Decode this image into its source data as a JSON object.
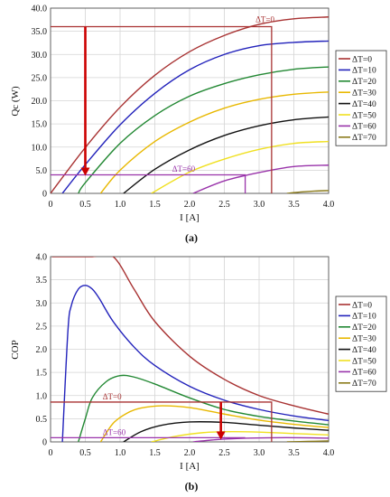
{
  "chart_data": [
    {
      "type": "line",
      "panel_label": "(a)",
      "xlabel": "I [A]",
      "ylabel": "Qc (W)",
      "xlim": [
        0,
        4
      ],
      "ylim": [
        0,
        40
      ],
      "xticks": [
        "0",
        "0.5",
        "1.0",
        "1.5",
        "2.0",
        "2.5",
        "3.0",
        "3.5",
        "4.0"
      ],
      "yticks": [
        "0",
        "5.0",
        "10.0",
        "15.0",
        "20.0",
        "25.0",
        "30.0",
        "35.0",
        "40.0"
      ],
      "grid": true,
      "legend_position": "right",
      "series": [
        {
          "name": "ΔT=0",
          "color": "#a83232",
          "x": [
            0,
            0.5,
            1.0,
            1.5,
            2.0,
            2.5,
            3.0,
            3.5,
            4.0
          ],
          "y": [
            0,
            9.9,
            18.6,
            25.5,
            30.6,
            34.1,
            36.5,
            37.7,
            38.1
          ]
        },
        {
          "name": "ΔT=10",
          "color": "#2222bb",
          "x": [
            0.17,
            0.5,
            1.0,
            1.5,
            2.0,
            2.5,
            3.0,
            3.5,
            4.0
          ],
          "y": [
            0,
            6.2,
            14.8,
            21.6,
            26.7,
            30.0,
            31.9,
            32.6,
            32.9
          ]
        },
        {
          "name": "ΔT=20",
          "color": "#228833",
          "x": [
            0.4,
            0.5,
            1.0,
            1.5,
            2.0,
            2.5,
            3.0,
            3.5,
            4.0
          ],
          "y": [
            0,
            2.3,
            10.8,
            16.8,
            21.0,
            23.7,
            25.6,
            26.8,
            27.3
          ]
        },
        {
          "name": "ΔT=30",
          "color": "#e8b800",
          "x": [
            0.72,
            1.0,
            1.5,
            2.0,
            2.5,
            3.0,
            3.5,
            4.0
          ],
          "y": [
            0,
            5.0,
            11.2,
            15.4,
            18.4,
            20.3,
            21.4,
            21.9
          ]
        },
        {
          "name": "ΔT=40",
          "color": "#111111",
          "x": [
            1.05,
            1.5,
            2.0,
            2.5,
            3.0,
            3.5,
            4.0
          ],
          "y": [
            0,
            5.2,
            9.4,
            12.5,
            14.6,
            15.9,
            16.5
          ]
        },
        {
          "name": "ΔT=50",
          "color": "#f0e020",
          "x": [
            1.45,
            2.0,
            2.5,
            3.0,
            3.5,
            4.0
          ],
          "y": [
            0,
            4.6,
            7.4,
            9.5,
            10.8,
            11.2
          ]
        },
        {
          "name": "ΔT=60",
          "color": "#9933aa",
          "x": [
            2.05,
            2.5,
            3.0,
            3.5,
            4.0
          ],
          "y": [
            0,
            2.7,
            4.5,
            5.8,
            6.1
          ]
        },
        {
          "name": "ΔT=70",
          "color": "#8a7a1a",
          "x": [
            3.4,
            3.6,
            3.8,
            4.0
          ],
          "y": [
            0,
            0.3,
            0.5,
            0.6
          ]
        }
      ],
      "annotations": [
        {
          "text": "ΔT=0",
          "x": 2.95,
          "y": 37.0,
          "color": "#a83232"
        },
        {
          "text": "ΔT=60",
          "x": 1.75,
          "y": 4.7,
          "color": "#9933aa"
        }
      ],
      "reference_lines": [
        {
          "color": "#a83232",
          "points": [
            [
              0,
              36
            ],
            [
              3.18,
              36
            ],
            [
              3.18,
              0
            ]
          ]
        },
        {
          "color": "#9933aa",
          "points": [
            [
              0,
              4
            ],
            [
              2.8,
              4
            ],
            [
              2.8,
              0
            ]
          ]
        }
      ],
      "arrow": {
        "color": "#cc0000",
        "from": [
          0.5,
          36
        ],
        "to": [
          0.5,
          3.8
        ]
      }
    },
    {
      "type": "line",
      "panel_label": "(b)",
      "xlabel": "I [A]",
      "ylabel": "COP",
      "xlim": [
        0,
        4
      ],
      "ylim": [
        0,
        4
      ],
      "xticks": [
        "0",
        "0.5",
        "1.0",
        "1.5",
        "2.0",
        "2.5",
        "3.0",
        "3.5",
        "4.0"
      ],
      "yticks": [
        "0",
        "0.5",
        "1.0",
        "1.5",
        "2.0",
        "2.5",
        "3.0",
        "3.5",
        "4.0"
      ],
      "grid": true,
      "legend_position": "right",
      "series": [
        {
          "name": "ΔT=0",
          "color": "#a83232",
          "x": [
            0.02,
            0.05,
            0.1,
            0.3,
            0.6,
            0.9,
            1.2,
            1.5,
            2.0,
            2.5,
            3.0,
            3.5,
            4.0
          ],
          "y": [
            4.0,
            4.0,
            4.0,
            4.0,
            4.0,
            4.0,
            3.3,
            2.6,
            1.85,
            1.35,
            1.0,
            0.78,
            0.6
          ]
        },
        {
          "name": "ΔT=10",
          "color": "#2222bb",
          "x": [
            0.17,
            0.25,
            0.3,
            0.4,
            0.5,
            0.6,
            0.7,
            0.9,
            1.2,
            1.5,
            2.0,
            2.5,
            3.0,
            3.5,
            4.0
          ],
          "y": [
            0,
            2.4,
            2.95,
            3.3,
            3.38,
            3.3,
            3.1,
            2.6,
            2.05,
            1.65,
            1.2,
            0.9,
            0.7,
            0.56,
            0.46
          ]
        },
        {
          "name": "ΔT=20",
          "color": "#228833",
          "x": [
            0.4,
            0.5,
            0.6,
            0.8,
            1.0,
            1.2,
            1.5,
            2.0,
            2.5,
            3.0,
            3.5,
            4.0
          ],
          "y": [
            0,
            0.5,
            0.95,
            1.3,
            1.43,
            1.4,
            1.25,
            0.95,
            0.7,
            0.55,
            0.45,
            0.37
          ]
        },
        {
          "name": "ΔT=30",
          "color": "#e8b800",
          "x": [
            0.72,
            0.9,
            1.1,
            1.3,
            1.6,
            2.0,
            2.5,
            3.0,
            3.5,
            4.0
          ],
          "y": [
            0,
            0.4,
            0.62,
            0.73,
            0.78,
            0.74,
            0.6,
            0.47,
            0.38,
            0.31
          ]
        },
        {
          "name": "ΔT=40",
          "color": "#111111",
          "x": [
            1.05,
            1.3,
            1.6,
            2.0,
            2.5,
            3.0,
            3.5,
            4.0
          ],
          "y": [
            0,
            0.22,
            0.36,
            0.43,
            0.42,
            0.36,
            0.3,
            0.25
          ]
        },
        {
          "name": "ΔT=50",
          "color": "#f0e020",
          "x": [
            1.45,
            1.8,
            2.2,
            2.6,
            3.0,
            3.5,
            4.0
          ],
          "y": [
            0,
            0.12,
            0.2,
            0.22,
            0.21,
            0.18,
            0.15
          ]
        },
        {
          "name": "ΔT=60",
          "color": "#9933aa",
          "x": [
            2.05,
            2.4,
            2.8,
            3.2,
            3.6,
            4.0
          ],
          "y": [
            0,
            0.05,
            0.08,
            0.09,
            0.09,
            0.08
          ]
        },
        {
          "name": "ΔT=70",
          "color": "#8a7a1a",
          "x": [
            3.4,
            3.7,
            4.0
          ],
          "y": [
            0,
            0.01,
            0.02
          ]
        }
      ],
      "annotations": [
        {
          "text": "ΔT=0",
          "x": 0.75,
          "y": 0.92,
          "color": "#a83232"
        },
        {
          "text": "ΔT=60",
          "x": 0.75,
          "y": 0.15,
          "color": "#9933aa"
        }
      ],
      "reference_lines": [
        {
          "color": "#a83232",
          "points": [
            [
              0,
              0.86
            ],
            [
              3.18,
              0.86
            ],
            [
              3.18,
              0
            ]
          ]
        },
        {
          "color": "#9933aa",
          "points": [
            [
              0,
              0.09
            ],
            [
              2.8,
              0.09
            ]
          ]
        }
      ],
      "arrow": {
        "color": "#cc0000",
        "from": [
          2.45,
          0.86
        ],
        "to": [
          2.45,
          0.05
        ]
      }
    }
  ]
}
